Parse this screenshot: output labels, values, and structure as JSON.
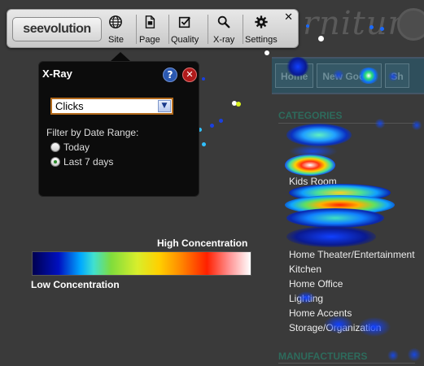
{
  "toolbar": {
    "logo": "seevolution",
    "buttons": [
      {
        "label": "Site",
        "icon": "globe-icon"
      },
      {
        "label": "Page",
        "icon": "page-icon"
      },
      {
        "label": "Quality",
        "icon": "checkbox-icon"
      },
      {
        "label": "X-ray",
        "icon": "magnifier-icon"
      },
      {
        "label": "Settings",
        "icon": "gear-icon"
      }
    ],
    "close": "✕"
  },
  "xray": {
    "title": "X-Ray",
    "help": "?",
    "close": "✕",
    "metric_select": {
      "value": "Clicks"
    },
    "filter_label": "Filter by Date Range:",
    "options": [
      {
        "label": "Today",
        "checked": false
      },
      {
        "label": "Last 7 days",
        "checked": true
      }
    ]
  },
  "legend": {
    "high_label": "High Concentration",
    "low_label": "Low Concentration"
  },
  "background_page": {
    "logo_text": "rniture",
    "nav": [
      "Home",
      "New Goods",
      "Sh"
    ],
    "categories_title": "CATEGORIES",
    "categories": [
      "Kids Room",
      "Home Theater/Entertainment",
      "Kitchen",
      "Home Office",
      "Lighting",
      "Home Accents",
      "Storage/Organization"
    ],
    "manufacturers_title": "MANUFACTURERS"
  },
  "colors": {
    "toolbar_bg": "#d6d6d6",
    "panel_bg": "#0c0c0c",
    "help_blue": "#2a58b0",
    "close_red": "#b01a1a",
    "select_border": "#b26a1c",
    "category_title": "#2d6b5c"
  }
}
